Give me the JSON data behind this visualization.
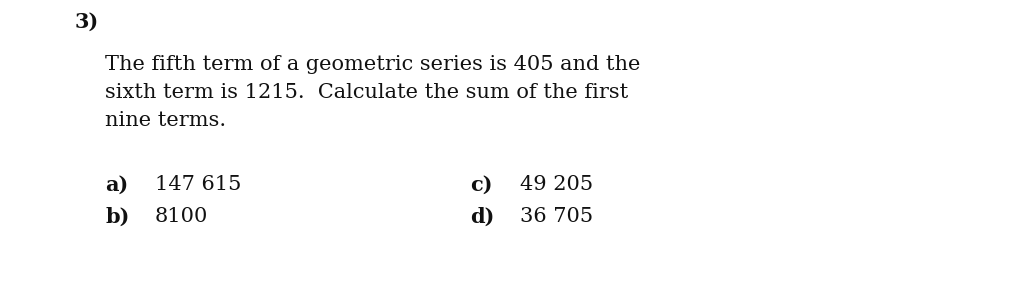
{
  "background_color": "#ffffff",
  "number_label": "3)",
  "number_fontsize": 15,
  "number_fontweight": "bold",
  "question_line1": "The fifth term of a geometric series is 405 and the",
  "question_line2": "sixth term is 1215.  Calculate the sum of the first",
  "question_line3": "nine terms.",
  "question_fontsize": 15,
  "options": [
    {
      "label": "a)",
      "value": "147 615",
      "col": 0,
      "row": 0
    },
    {
      "label": "b)",
      "value": "8100",
      "col": 0,
      "row": 1
    },
    {
      "label": "c)",
      "value": "49 205",
      "col": 1,
      "row": 0
    },
    {
      "label": "d)",
      "value": "36 705",
      "col": 1,
      "row": 1
    }
  ],
  "option_fontsize": 15,
  "text_color": "#111111",
  "font_family": "DejaVu Serif"
}
